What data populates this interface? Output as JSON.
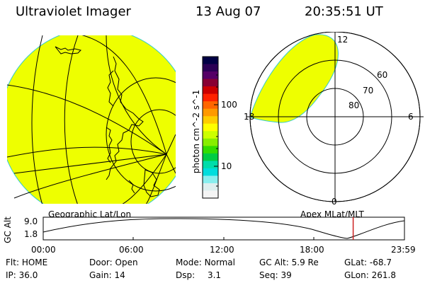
{
  "header": {
    "title": "Ultraviolet Imager",
    "date": "13 Aug 07",
    "time": "20:35:51 UT"
  },
  "colorbar": {
    "label": "photon cm^-2 s^-1",
    "ticks": [
      "100",
      "10"
    ],
    "colors": [
      "#000044",
      "#2a0055",
      "#550066",
      "#880033",
      "#cc0000",
      "#ff2200",
      "#ff6600",
      "#ff9900",
      "#ffcc00",
      "#ffff00",
      "#ccff00",
      "#88ee00",
      "#33dd00",
      "#00cc44",
      "#00ddaa",
      "#00dddd",
      "#88eeee",
      "#ddeeee",
      "#f4f4f4"
    ]
  },
  "left_map": {
    "label": "Geographic Lat/Lon",
    "fill_color": "#eeff00"
  },
  "right_map": {
    "label": "Apex MLat/MLT",
    "mlt_labels": {
      "top": "12",
      "left": "18",
      "right": "6",
      "bottom": "0"
    },
    "mlat_labels": [
      "60",
      "70",
      "80"
    ]
  },
  "timeline": {
    "axis_label": "GC Alt",
    "y_ticks": [
      "9.0",
      "1.8"
    ],
    "x_ticks": [
      "00:00",
      "06:00",
      "12:00",
      "18:00",
      "23:59"
    ],
    "current_fraction": 0.858
  },
  "status": {
    "flt_label": "Flt:",
    "flt_value": "HOME",
    "ip_label": "IP:",
    "ip_value": "36.0",
    "door_label": "Door:",
    "door_value": "Open",
    "gain_label": "Gain:",
    "gain_value": "14",
    "mode_label": "Mode:",
    "mode_value": "Normal",
    "dsp_label": "Dsp:",
    "dsp_value": "3.1",
    "gcalt_label": "GC Alt:",
    "gcalt_value": "5.9 Re",
    "seq_label": "Seq:",
    "seq_value": "39",
    "glat_label": "GLat:",
    "glat_value": "-68.7",
    "glon_label": "GLon:",
    "glon_value": "261.8"
  }
}
